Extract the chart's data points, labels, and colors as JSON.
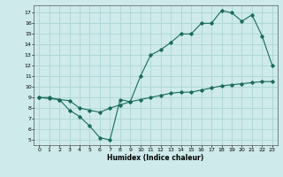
{
  "xlabel": "Humidex (Indice chaleur)",
  "bg_color": "#ceeaea",
  "grid_color": "#b0d8d8",
  "line_color": "#1a6b5a",
  "xlim": [
    -0.5,
    23.5
  ],
  "ylim": [
    4.5,
    17.7
  ],
  "xticks": [
    0,
    1,
    2,
    3,
    4,
    5,
    6,
    7,
    8,
    9,
    10,
    11,
    12,
    13,
    14,
    15,
    16,
    17,
    18,
    19,
    20,
    21,
    22,
    23
  ],
  "yticks": [
    5,
    6,
    7,
    8,
    9,
    10,
    11,
    12,
    13,
    14,
    15,
    16,
    17
  ],
  "line1_x": [
    0,
    1,
    2,
    3,
    4,
    5,
    6,
    7,
    8,
    9,
    10,
    11,
    12,
    13,
    14,
    15,
    16,
    17,
    18,
    19,
    20,
    21,
    22,
    23
  ],
  "line1_y": [
    9.0,
    9.0,
    8.8,
    7.8,
    7.2,
    6.3,
    5.2,
    5.0,
    8.8,
    8.6,
    11.0,
    13.0,
    13.5,
    14.2,
    15.0,
    15.0,
    16.0,
    16.0,
    17.2,
    17.0,
    16.2,
    16.8,
    14.8,
    12.0
  ],
  "line2_x": [
    0,
    1,
    2,
    3,
    4,
    5,
    6,
    7,
    8,
    9,
    10,
    11,
    12,
    13,
    14,
    15,
    16,
    17,
    18,
    19,
    20,
    21,
    22,
    23
  ],
  "line2_y": [
    9.0,
    8.9,
    8.8,
    8.7,
    8.0,
    7.8,
    7.6,
    8.0,
    8.3,
    8.6,
    8.8,
    9.0,
    9.2,
    9.4,
    9.5,
    9.5,
    9.7,
    9.9,
    10.1,
    10.2,
    10.3,
    10.4,
    10.5,
    10.5
  ]
}
